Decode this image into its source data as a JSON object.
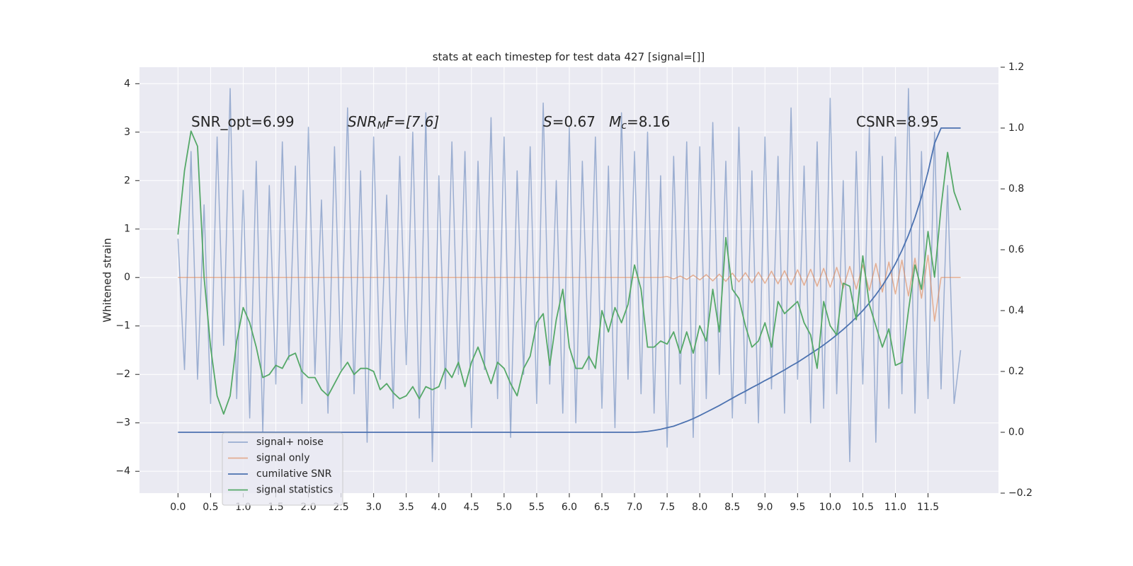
{
  "chart_data": {
    "type": "line",
    "title": "stats at each timestep for test data 427 [signal=[]]",
    "y_label": "Whitened strain",
    "annotations": [
      [
        "SNR_opt=6.99"
      ],
      [
        "SNR",
        "M",
        "F=[7.6]"
      ],
      [
        "S",
        "=0.67   ",
        "M",
        "c",
        "=8.16"
      ],
      [
        "CSNR=8.95"
      ]
    ],
    "background": "#eaeaf2",
    "grid": true,
    "legend": "lower left",
    "xlim": [
      -0.59,
      12.58
    ],
    "ylim": [
      -4.45,
      4.34
    ],
    "y2lim": [
      -0.2,
      1.2
    ],
    "xticks": [
      {
        "value": 0,
        "label": "0.0"
      },
      0.5,
      {
        "value": 1,
        "label": "1.0"
      },
      1.5,
      {
        "value": 2,
        "label": "2.0"
      },
      2.5,
      {
        "value": 3,
        "label": "3.0"
      },
      3.5,
      {
        "value": 4,
        "label": "4.0"
      },
      4.5,
      {
        "value": 5,
        "label": "5.0"
      },
      5.5,
      {
        "value": 6,
        "label": "6.0"
      },
      6.5,
      {
        "value": 7,
        "label": "7.0"
      },
      7.5,
      {
        "value": 8,
        "label": "8.0"
      },
      8.5,
      {
        "value": 9,
        "label": "9.0"
      },
      9.5,
      {
        "value": 10,
        "label": "10.0"
      },
      10.5,
      {
        "value": 11,
        "label": "11.0"
      },
      11.5
    ],
    "yticks": [
      {
        "value": -4,
        "label": "−4"
      },
      {
        "value": -3,
        "label": "−3"
      },
      {
        "value": -2,
        "label": "−2"
      },
      {
        "value": -1,
        "label": "−1"
      },
      0,
      1,
      2,
      3,
      4
    ],
    "y2ticks": [
      {
        "value": -0.2,
        "label": "−0.2"
      },
      {
        "value": 0,
        "label": "0.0"
      },
      0.2,
      0.4,
      0.6,
      0.8,
      {
        "value": 1,
        "label": "1.0"
      },
      1.2
    ],
    "x": [
      0,
      0.1,
      0.2,
      0.3,
      0.4,
      0.5,
      0.6,
      0.7,
      0.8,
      0.9,
      1,
      1.1,
      1.2,
      1.3,
      1.4,
      1.5,
      1.6,
      1.7,
      1.8,
      1.9,
      2,
      2.1,
      2.2,
      2.3,
      2.4,
      2.5,
      2.6,
      2.7,
      2.8,
      2.9,
      3,
      3.1,
      3.2,
      3.3,
      3.4,
      3.5,
      3.6,
      3.7,
      3.8,
      3.9,
      4,
      4.1,
      4.2,
      4.3,
      4.4,
      4.5,
      4.6,
      4.7,
      4.8,
      4.9,
      5,
      5.1,
      5.2,
      5.3,
      5.4,
      5.5,
      5.6,
      5.7,
      5.8,
      5.9,
      6,
      6.1,
      6.2,
      6.3,
      6.4,
      6.5,
      6.6,
      6.7,
      6.8,
      6.9,
      7,
      7.1,
      7.2,
      7.3,
      7.4,
      7.5,
      7.6,
      7.7,
      7.8,
      7.9,
      8,
      8.1,
      8.2,
      8.3,
      8.4,
      8.5,
      8.6,
      8.7,
      8.8,
      8.9,
      9,
      9.1,
      9.2,
      9.3,
      9.4,
      9.5,
      9.6,
      9.7,
      9.8,
      9.9,
      10,
      10.1,
      10.2,
      10.3,
      10.4,
      10.5,
      10.6,
      10.7,
      10.8,
      10.9,
      11,
      11.1,
      11.2,
      11.3,
      11.4,
      11.5,
      11.6,
      11.7,
      11.8,
      11.9,
      12
    ],
    "series": [
      {
        "name": "signal+ noise",
        "color": "#4c72b0",
        "opacity": 0.5,
        "values": [
          0.8,
          -1.9,
          2.6,
          -2.1,
          1.5,
          -2.6,
          2.9,
          -1.4,
          3.9,
          -2.5,
          1.8,
          -2.9,
          2.4,
          -3.2,
          1.9,
          -2.2,
          2.8,
          -1.7,
          2.3,
          -2.6,
          3.1,
          -2.0,
          1.6,
          -2.8,
          2.7,
          -1.9,
          3.5,
          -2.4,
          2.2,
          -3.4,
          2.9,
          -2.1,
          1.7,
          -2.7,
          2.5,
          -1.8,
          3.0,
          -2.9,
          3.4,
          -3.8,
          2.1,
          -2.3,
          2.8,
          -2.0,
          2.6,
          -3.1,
          2.4,
          -1.9,
          3.3,
          -2.5,
          2.9,
          -3.3,
          2.2,
          -2.0,
          2.7,
          -2.6,
          3.6,
          -2.2,
          2.0,
          -2.8,
          3.1,
          -3.0,
          2.4,
          -1.9,
          2.9,
          -2.7,
          2.3,
          -3.1,
          3.4,
          -2.1,
          2.6,
          -2.4,
          3.0,
          -2.8,
          2.1,
          -3.5,
          2.5,
          -2.2,
          2.8,
          -3.3,
          2.7,
          -2.5,
          3.2,
          -2.0,
          2.4,
          -2.9,
          3.1,
          -2.6,
          2.2,
          -3.0,
          2.9,
          -2.3,
          2.5,
          -2.8,
          3.5,
          -2.1,
          2.3,
          -3.0,
          2.8,
          -2.7,
          3.7,
          -2.4,
          2.0,
          -3.8,
          2.6,
          -2.2,
          3.1,
          -3.4,
          2.5,
          -2.7,
          2.9,
          -2.4,
          3.9,
          -2.8,
          2.6,
          -2.5,
          3.0,
          -2.3,
          1.9,
          -2.6,
          -1.5
        ]
      },
      {
        "name": "signal only",
        "color": "#dd8452",
        "opacity": 0.6,
        "values": [
          0,
          0,
          0,
          0,
          0,
          0,
          0,
          0,
          0,
          0,
          0,
          0,
          0,
          0,
          0,
          0,
          0,
          0,
          0,
          0,
          0,
          0,
          0,
          0,
          0,
          0,
          0,
          0,
          0,
          0,
          0,
          0,
          0,
          0,
          0,
          0,
          0,
          0,
          0,
          0,
          0,
          0,
          0,
          0,
          0,
          0,
          0,
          0,
          0,
          0,
          0,
          0,
          0,
          0,
          0,
          0,
          0,
          0,
          0,
          0,
          0,
          0,
          0,
          0,
          0,
          0,
          0,
          0,
          0,
          0,
          0,
          0,
          0,
          0,
          0,
          0.02,
          -0.03,
          0.03,
          -0.04,
          0.05,
          -0.05,
          0.06,
          -0.07,
          0.07,
          -0.08,
          0.09,
          -0.09,
          0.1,
          -0.11,
          0.11,
          -0.12,
          0.13,
          -0.13,
          0.14,
          -0.15,
          0.16,
          -0.16,
          0.17,
          -0.18,
          0.19,
          -0.2,
          0.21,
          -0.22,
          0.23,
          -0.24,
          0.26,
          -0.27,
          0.29,
          -0.3,
          0.32,
          -0.34,
          0.36,
          -0.38,
          0.4,
          -0.43,
          0.46,
          -0.9,
          0,
          0,
          0,
          0
        ]
      },
      {
        "name": "cumilative SNR",
        "color": "#4c72b0",
        "opacity": 1,
        "axis": "y2",
        "values": [
          0,
          0,
          0,
          0,
          0,
          0,
          0,
          0,
          0,
          0,
          0,
          0,
          0,
          0,
          0,
          0,
          0,
          0,
          0,
          0,
          0,
          0,
          0,
          0,
          0,
          0,
          0,
          0,
          0,
          0,
          0,
          0,
          0,
          0,
          0,
          0,
          0,
          0,
          0,
          0,
          0,
          0,
          0,
          0,
          0,
          0,
          0,
          0,
          0,
          0,
          0,
          0,
          0,
          0,
          0,
          0,
          0,
          0,
          0,
          0,
          0,
          0,
          0,
          0,
          0,
          0,
          0,
          0,
          0,
          0,
          0,
          0.001,
          0.003,
          0.006,
          0.01,
          0.015,
          0.02,
          0.028,
          0.036,
          0.045,
          0.055,
          0.066,
          0.077,
          0.088,
          0.1,
          0.112,
          0.124,
          0.135,
          0.147,
          0.158,
          0.17,
          0.181,
          0.193,
          0.205,
          0.218,
          0.23,
          0.244,
          0.258,
          0.272,
          0.287,
          0.303,
          0.32,
          0.338,
          0.357,
          0.378,
          0.4,
          0.425,
          0.452,
          0.482,
          0.516,
          0.554,
          0.598,
          0.648,
          0.706,
          0.774,
          0.856,
          0.95,
          1,
          1,
          1,
          1
        ]
      },
      {
        "name": "signal statistics",
        "color": "#55a868",
        "opacity": 1,
        "axis": "y2",
        "values": [
          0.65,
          0.86,
          0.99,
          0.94,
          0.51,
          0.28,
          0.12,
          0.06,
          0.12,
          0.3,
          0.41,
          0.36,
          0.28,
          0.18,
          0.19,
          0.22,
          0.21,
          0.25,
          0.26,
          0.2,
          0.18,
          0.18,
          0.14,
          0.12,
          0.16,
          0.2,
          0.23,
          0.19,
          0.21,
          0.21,
          0.2,
          0.14,
          0.16,
          0.13,
          0.11,
          0.12,
          0.15,
          0.11,
          0.15,
          0.14,
          0.15,
          0.21,
          0.18,
          0.23,
          0.15,
          0.23,
          0.28,
          0.22,
          0.16,
          0.23,
          0.21,
          0.16,
          0.12,
          0.21,
          0.25,
          0.36,
          0.39,
          0.22,
          0.37,
          0.47,
          0.28,
          0.21,
          0.21,
          0.25,
          0.21,
          0.4,
          0.33,
          0.41,
          0.36,
          0.42,
          0.55,
          0.47,
          0.28,
          0.28,
          0.3,
          0.29,
          0.33,
          0.26,
          0.33,
          0.26,
          0.35,
          0.3,
          0.47,
          0.33,
          0.64,
          0.47,
          0.44,
          0.35,
          0.28,
          0.3,
          0.36,
          0.28,
          0.43,
          0.39,
          0.41,
          0.43,
          0.36,
          0.32,
          0.21,
          0.43,
          0.35,
          0.32,
          0.49,
          0.48,
          0.37,
          0.58,
          0.42,
          0.35,
          0.28,
          0.34,
          0.22,
          0.23,
          0.4,
          0.55,
          0.47,
          0.66,
          0.51,
          0.74,
          0.92,
          0.79,
          0.73
        ]
      }
    ]
  }
}
